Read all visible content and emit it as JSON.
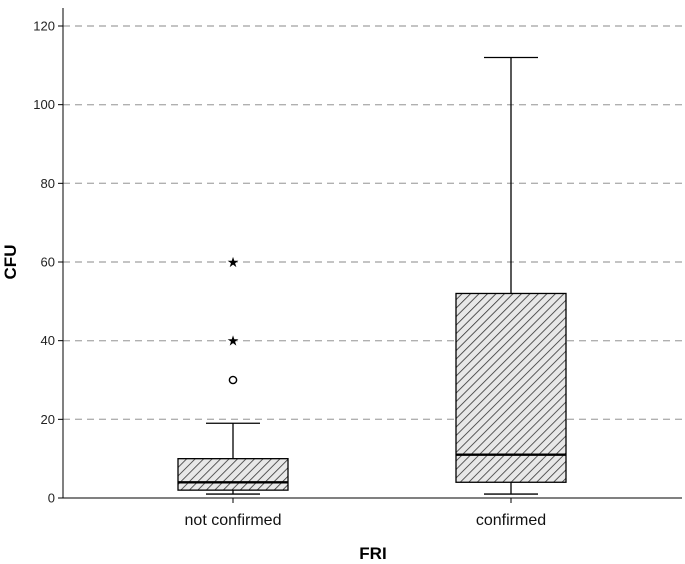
{
  "chart_data": {
    "type": "boxplot",
    "title": "",
    "xlabel": "FRI",
    "ylabel": "CFU",
    "ylim": [
      0,
      120
    ],
    "yticks": [
      0,
      20,
      40,
      60,
      80,
      100,
      120
    ],
    "ytick_labels": [
      "0",
      "20",
      "40",
      "60",
      "80",
      "100",
      "120"
    ],
    "grid": "horizontal dashed",
    "categories": [
      "not confirmed",
      "confirmed"
    ],
    "boxes": [
      {
        "category": "not confirmed",
        "whisker_low": 1,
        "q1": 2,
        "median": 4,
        "q3": 10,
        "whisker_high": 19,
        "outliers": [
          30
        ],
        "extremes": [
          40,
          60
        ]
      },
      {
        "category": "confirmed",
        "whisker_low": 1,
        "q1": 4,
        "median": 11,
        "q3": 52,
        "whisker_high": 112,
        "outliers": [],
        "extremes": []
      }
    ],
    "colors": {
      "box_fill": "#e8e8e8",
      "hatch": "#333333",
      "line": "#000000",
      "grid": "#b0b0b0"
    }
  }
}
